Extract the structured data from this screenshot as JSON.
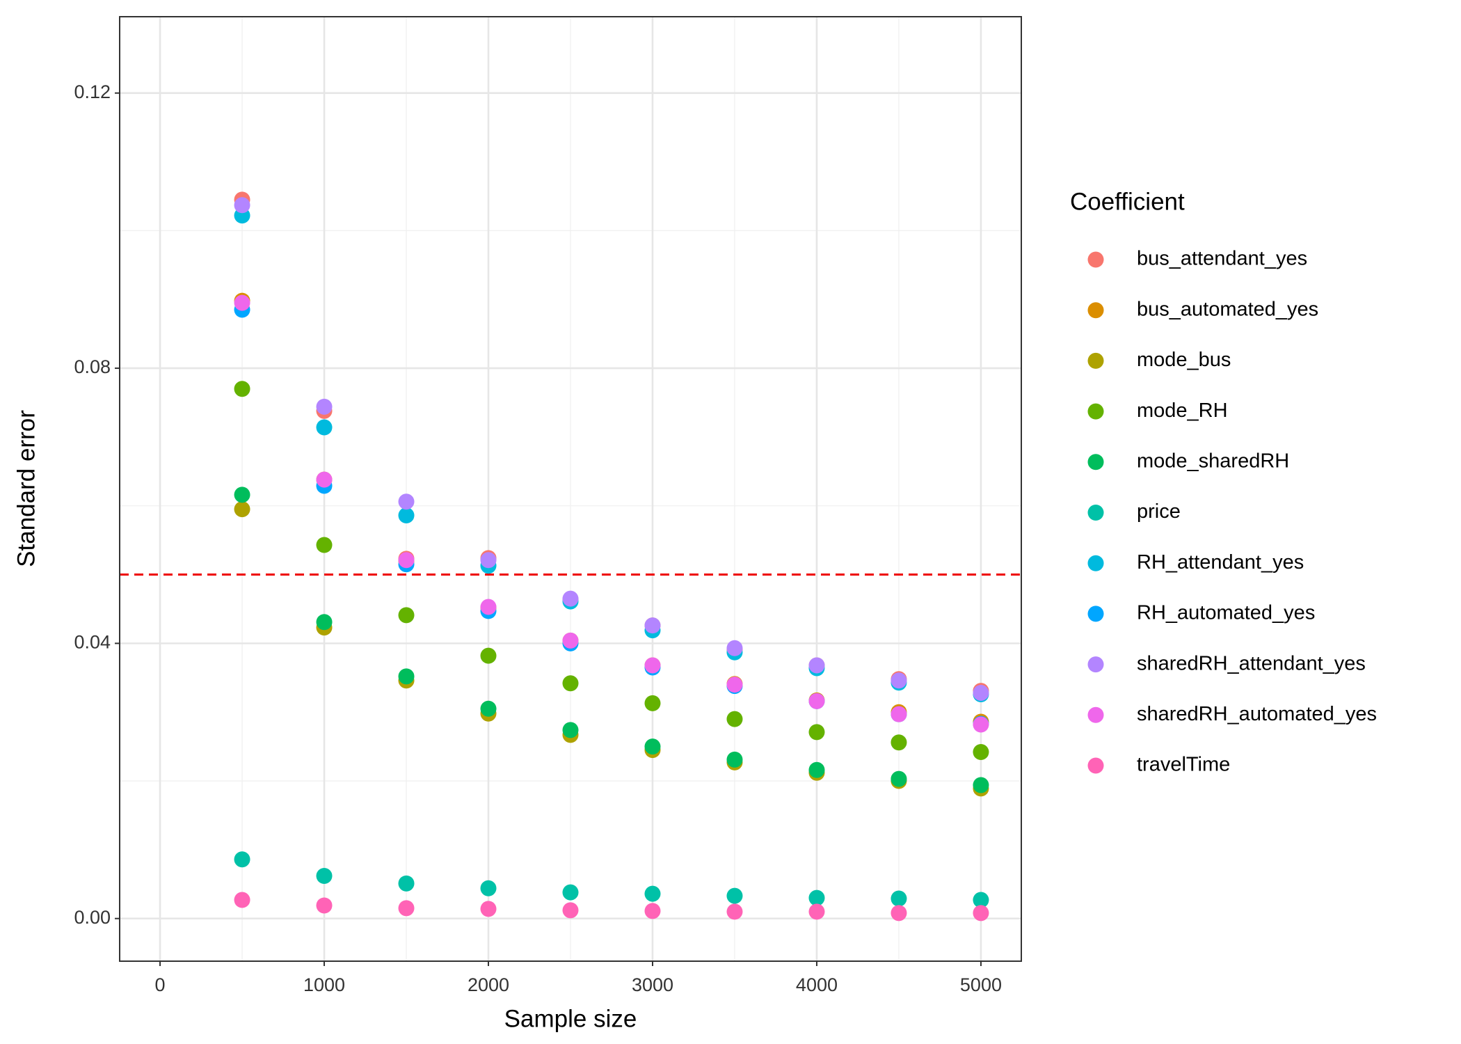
{
  "chart_data": {
    "type": "scatter",
    "x_label": "Sample size",
    "y_label": "Standard error",
    "legend_title": "Coefficient",
    "x": [
      500,
      1000,
      1500,
      2000,
      2500,
      3000,
      3500,
      4000,
      4500,
      5000
    ],
    "series": [
      {
        "name": "bus_attendant_yes",
        "color": "#F8766D",
        "values": [
          0.1045,
          0.0738,
          0.0523,
          0.0524,
          0.0464,
          0.0426,
          0.0391,
          0.0368,
          0.0348,
          0.0331
        ]
      },
      {
        "name": "bus_automated_yes",
        "color": "#DB8E00",
        "values": [
          0.0898,
          0.0638,
          0.052,
          0.0452,
          0.0404,
          0.0368,
          0.0341,
          0.0317,
          0.03,
          0.0286
        ]
      },
      {
        "name": "mode_bus",
        "color": "#AEA200",
        "values": [
          0.0595,
          0.0423,
          0.0346,
          0.0298,
          0.0267,
          0.0245,
          0.0227,
          0.0212,
          0.02,
          0.0189
        ]
      },
      {
        "name": "mode_RH",
        "color": "#64B200",
        "values": [
          0.077,
          0.0543,
          0.0441,
          0.0382,
          0.0342,
          0.0313,
          0.029,
          0.0271,
          0.0256,
          0.0242
        ]
      },
      {
        "name": "mode_sharedRH",
        "color": "#00BD5C",
        "values": [
          0.0616,
          0.0431,
          0.0352,
          0.0305,
          0.0274,
          0.025,
          0.0231,
          0.0216,
          0.0203,
          0.0194
        ]
      },
      {
        "name": "price",
        "color": "#00C1A7",
        "values": [
          0.0086,
          0.0062,
          0.0051,
          0.0044,
          0.0038,
          0.0036,
          0.0033,
          0.003,
          0.0029,
          0.0027
        ]
      },
      {
        "name": "RH_attendant_yes",
        "color": "#00BADE",
        "values": [
          0.1022,
          0.0714,
          0.0586,
          0.0513,
          0.0461,
          0.0419,
          0.0387,
          0.0364,
          0.0343,
          0.0326
        ]
      },
      {
        "name": "RH_automated_yes",
        "color": "#00A6FF",
        "values": [
          0.0885,
          0.0629,
          0.0515,
          0.0447,
          0.04,
          0.0365,
          0.0338,
          0.0316,
          0.0297,
          0.0283
        ]
      },
      {
        "name": "sharedRH_attendant_yes",
        "color": "#B385FF",
        "values": [
          0.1037,
          0.0744,
          0.0606,
          0.0521,
          0.0465,
          0.0426,
          0.0393,
          0.0368,
          0.0346,
          0.0328
        ]
      },
      {
        "name": "sharedRH_automated_yes",
        "color": "#EF67EB",
        "values": [
          0.0895,
          0.0638,
          0.0521,
          0.0453,
          0.0404,
          0.0368,
          0.034,
          0.0316,
          0.0297,
          0.0282
        ]
      },
      {
        "name": "travelTime",
        "color": "#FF63B6",
        "values": [
          0.0027,
          0.0019,
          0.0015,
          0.0014,
          0.0012,
          0.0011,
          0.001,
          0.001,
          0.0008,
          0.0008
        ]
      }
    ],
    "hline": {
      "value": 0.05,
      "color": "#EE0000",
      "dashed": true
    },
    "xlim": [
      -246,
      5246
    ],
    "ylim": [
      -0.0062,
      0.1311
    ],
    "xticks": [
      0,
      1000,
      2000,
      3000,
      4000,
      5000
    ],
    "yticks": [
      {
        "value": 0,
        "label": "0.00"
      },
      {
        "value": 0.04,
        "label": "0.04"
      },
      {
        "value": 0.08,
        "label": "0.08"
      },
      {
        "value": 0.12,
        "label": "0.12"
      }
    ],
    "grid": true,
    "legend_position": "right"
  }
}
